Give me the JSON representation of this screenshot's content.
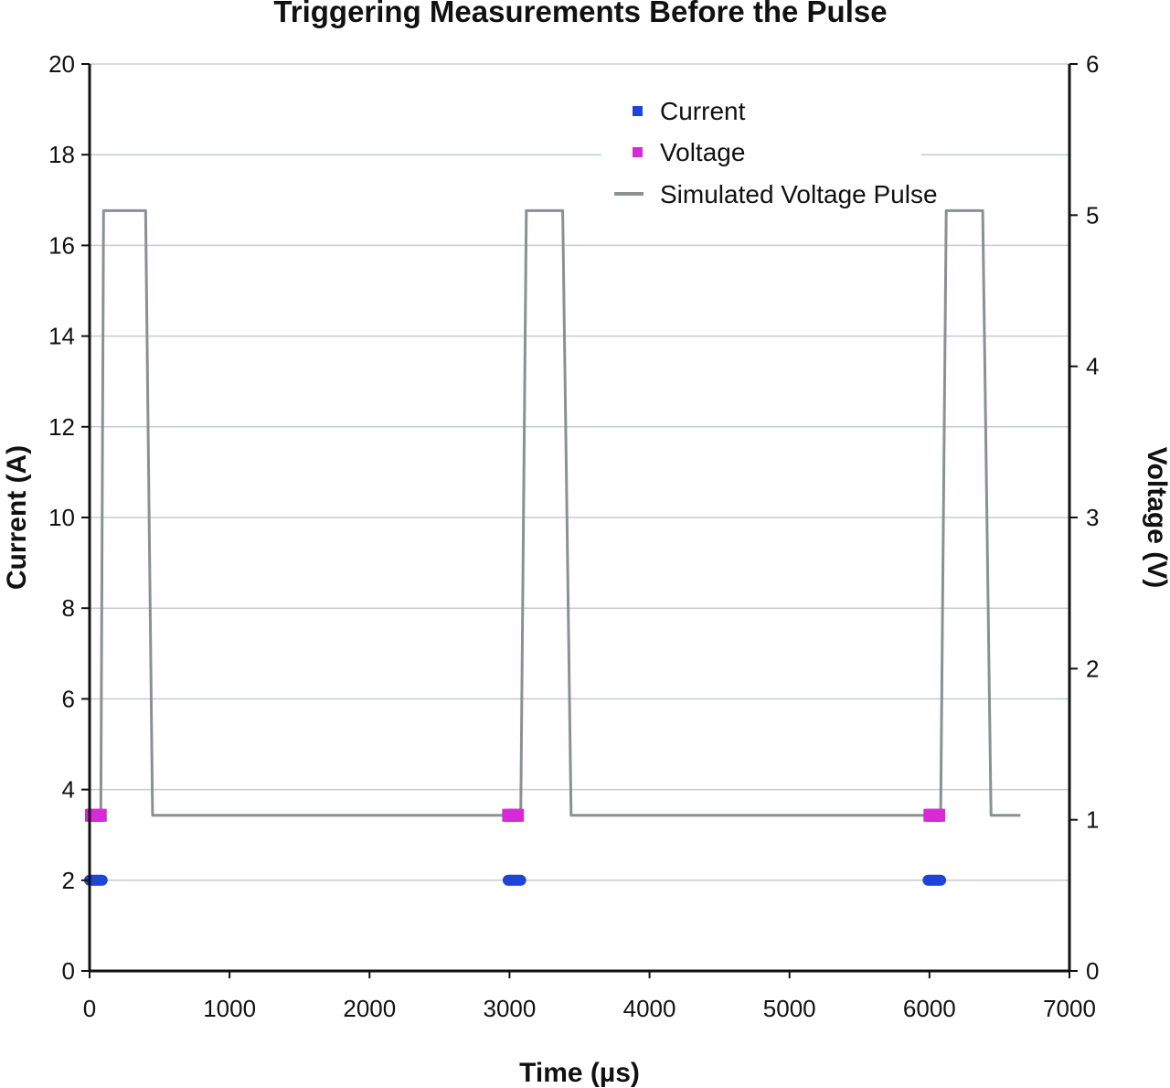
{
  "chart_data": {
    "type": "line",
    "title": "Triggering Measurements Before the Pulse",
    "xlabel": "Time (µs)",
    "ylabel_left": "Current (A)",
    "ylabel_right": "Voltage (V)",
    "xlim": [
      0,
      7000
    ],
    "ylim_left": [
      0,
      20
    ],
    "ylim_right": [
      0,
      6
    ],
    "x_ticks": [
      0,
      1000,
      2000,
      3000,
      4000,
      5000,
      6000,
      7000
    ],
    "y_left_ticks": [
      0,
      2,
      4,
      6,
      8,
      10,
      12,
      14,
      16,
      18,
      20
    ],
    "y_right_ticks": [
      0,
      1,
      2,
      3,
      4,
      5,
      6
    ],
    "grid": "horizontal",
    "legend_position": "top-right",
    "legend": [
      "Current",
      "Voltage",
      "Simulated Voltage Pulse"
    ],
    "series": [
      {
        "name": "Current",
        "kind": "scatter",
        "axis": "left",
        "color": "#1f45d6",
        "x": [
          0,
          10,
          20,
          30,
          40,
          50,
          60,
          70,
          80,
          90,
          2990,
          3000,
          3010,
          3020,
          3030,
          3040,
          3050,
          3060,
          3070,
          3080,
          5990,
          6000,
          6010,
          6020,
          6030,
          6040,
          6050,
          6060,
          6070,
          6080
        ],
        "y": [
          2,
          2,
          2,
          2,
          2,
          2,
          2,
          2,
          2,
          2,
          2,
          2,
          2,
          2,
          2,
          2,
          2,
          2,
          2,
          2,
          2,
          2,
          2,
          2,
          2,
          2,
          2,
          2,
          2,
          2
        ]
      },
      {
        "name": "Voltage",
        "kind": "scatter",
        "axis": "right",
        "color": "#d62ad6",
        "x": [
          0,
          10,
          20,
          30,
          40,
          50,
          60,
          70,
          80,
          90,
          2980,
          2990,
          3000,
          3010,
          3020,
          3030,
          3040,
          3050,
          3060,
          3070,
          5990,
          6000,
          6010,
          6020,
          6030,
          6040,
          6050,
          6060,
          6070,
          6080
        ],
        "y": [
          1.03,
          1.03,
          1.03,
          1.03,
          1.03,
          1.03,
          1.03,
          1.03,
          1.03,
          1.03,
          1.03,
          1.03,
          1.03,
          1.03,
          1.03,
          1.03,
          1.03,
          1.03,
          1.03,
          1.03,
          1.03,
          1.03,
          1.03,
          1.03,
          1.03,
          1.03,
          1.03,
          1.03,
          1.03,
          1.03
        ]
      },
      {
        "name": "Simulated Voltage Pulse",
        "kind": "line",
        "axis": "right",
        "color": "#8a9193",
        "x": [
          0,
          80,
          100,
          400,
          450,
          3050,
          3080,
          3120,
          3380,
          3440,
          6050,
          6080,
          6120,
          6380,
          6440,
          6650
        ],
        "y": [
          1.03,
          1.03,
          5.03,
          5.03,
          1.03,
          1.03,
          1.03,
          5.03,
          5.03,
          1.03,
          1.03,
          1.03,
          5.03,
          5.03,
          1.03,
          1.03
        ]
      }
    ]
  }
}
